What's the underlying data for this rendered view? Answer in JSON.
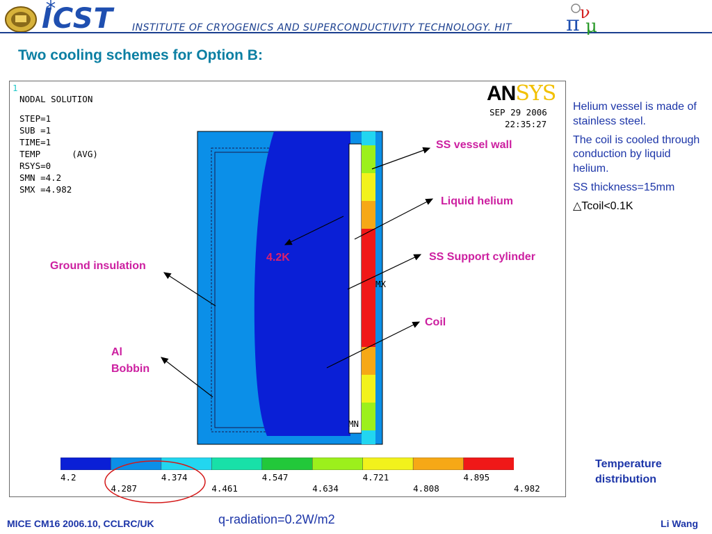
{
  "header": {
    "brand": "ICST",
    "institute": "INSTITUTE OF CRYOGENICS AND SUPERCONDUCTIVITY TECHNOLOGY. HIT",
    "logo_left": "university-seal-logo",
    "logo_right": "pi-nu-mu-logo"
  },
  "slide_title": "Two cooling schemes for Option B:",
  "plot": {
    "window_number": "1",
    "software": "ANSYS",
    "nodal_solution": "NODAL SOLUTION",
    "step": "STEP=1",
    "sub": "SUB =1",
    "time": "TIME=1",
    "temp": "TEMP      (AVG)",
    "rsys": "RSYS=0",
    "smn": "SMN =4.2",
    "smx": "SMX =4.982",
    "date": "SEP 29 2006",
    "clock": "22:35:27",
    "mx_marker": "MX",
    "mn_marker": "MN",
    "legend_top_labels": [
      "4.2",
      "4.374",
      "4.547",
      "4.721",
      "4.895"
    ],
    "legend_bottom_labels": [
      "4.287",
      "4.461",
      "4.634",
      "4.808",
      "4.982"
    ],
    "legend_colors": [
      "#0a1fd6",
      "#0b8fe8",
      "#22d6f0",
      "#18e0a8",
      "#22c83a",
      "#9cf01c",
      "#f2f21c",
      "#f6a816",
      "#f01818"
    ]
  },
  "annotations": {
    "ss_vessel_wall": "SS vessel wall",
    "liquid_helium": "Liquid helium",
    "ss_support_cylinder": "SS Support cylinder",
    "coil": "Coil",
    "ground_insulation": "Ground insulation",
    "al": "Al",
    "bobbin": "Bobbin",
    "temp_42k": "4.2K"
  },
  "side_notes": [
    "Helium vessel is made of stainless steel.",
    "The coil is cooled through conduction by liquid helium.",
    "SS thickness=15mm",
    "△Tcoil<0.1K"
  ],
  "temperature_distribution": [
    "Temperature",
    "distribution"
  ],
  "q_radiation": "q-radiation=0.2W/m2",
  "footer": {
    "left": "MICE CM16 2006.10, CCLRC/UK",
    "right": "Li Wang"
  }
}
